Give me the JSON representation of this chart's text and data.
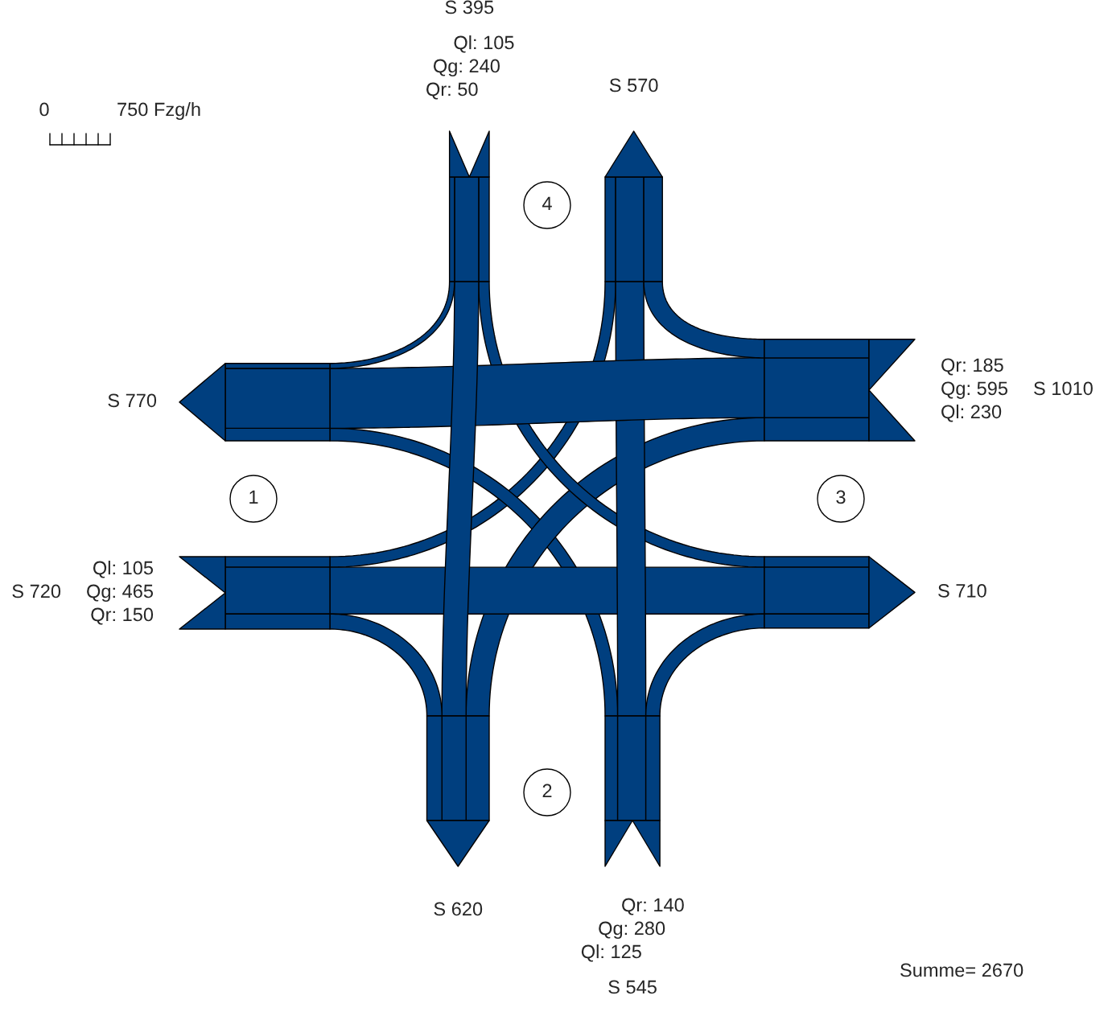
{
  "chart_data": {
    "type": "other",
    "categories": [
      "1",
      "2",
      "3",
      "4"
    ],
    "series": [
      {
        "color": "#003f7f",
        "values": [
          105,
          125,
          230,
          105
        ],
        "value_labels": [
          "Ql: 105",
          "Ql: 125",
          "Ql: 230",
          "Ql: 105"
        ]
      },
      {
        "color": "#003f7f",
        "values": [
          465,
          280,
          595,
          240
        ],
        "value_labels": [
          "Qg: 465",
          "Qg: 280",
          "Qg: 595",
          "Qg: 240"
        ]
      },
      {
        "color": "#003f7f",
        "values": [
          150,
          140,
          185,
          50
        ],
        "value_labels": [
          "Qr: 150",
          "Qr: 140",
          "Qr: 185",
          "Qr: 50"
        ]
      },
      {
        "color": "#003f7f",
        "values": [
          720,
          545,
          1010,
          395
        ],
        "value_labels": [
          "S 720",
          "S 545",
          "S 1010",
          "S 395"
        ]
      },
      {
        "color": "#003f7f",
        "values": [
          770,
          620,
          710,
          570
        ],
        "value_labels": [
          "S 770",
          "S 620",
          "S 710",
          "S 570"
        ]
      }
    ],
    "annotations": [
      "0",
      "750 Fzg/h",
      "Summe= 2670"
    ],
    "legend": false
  }
}
